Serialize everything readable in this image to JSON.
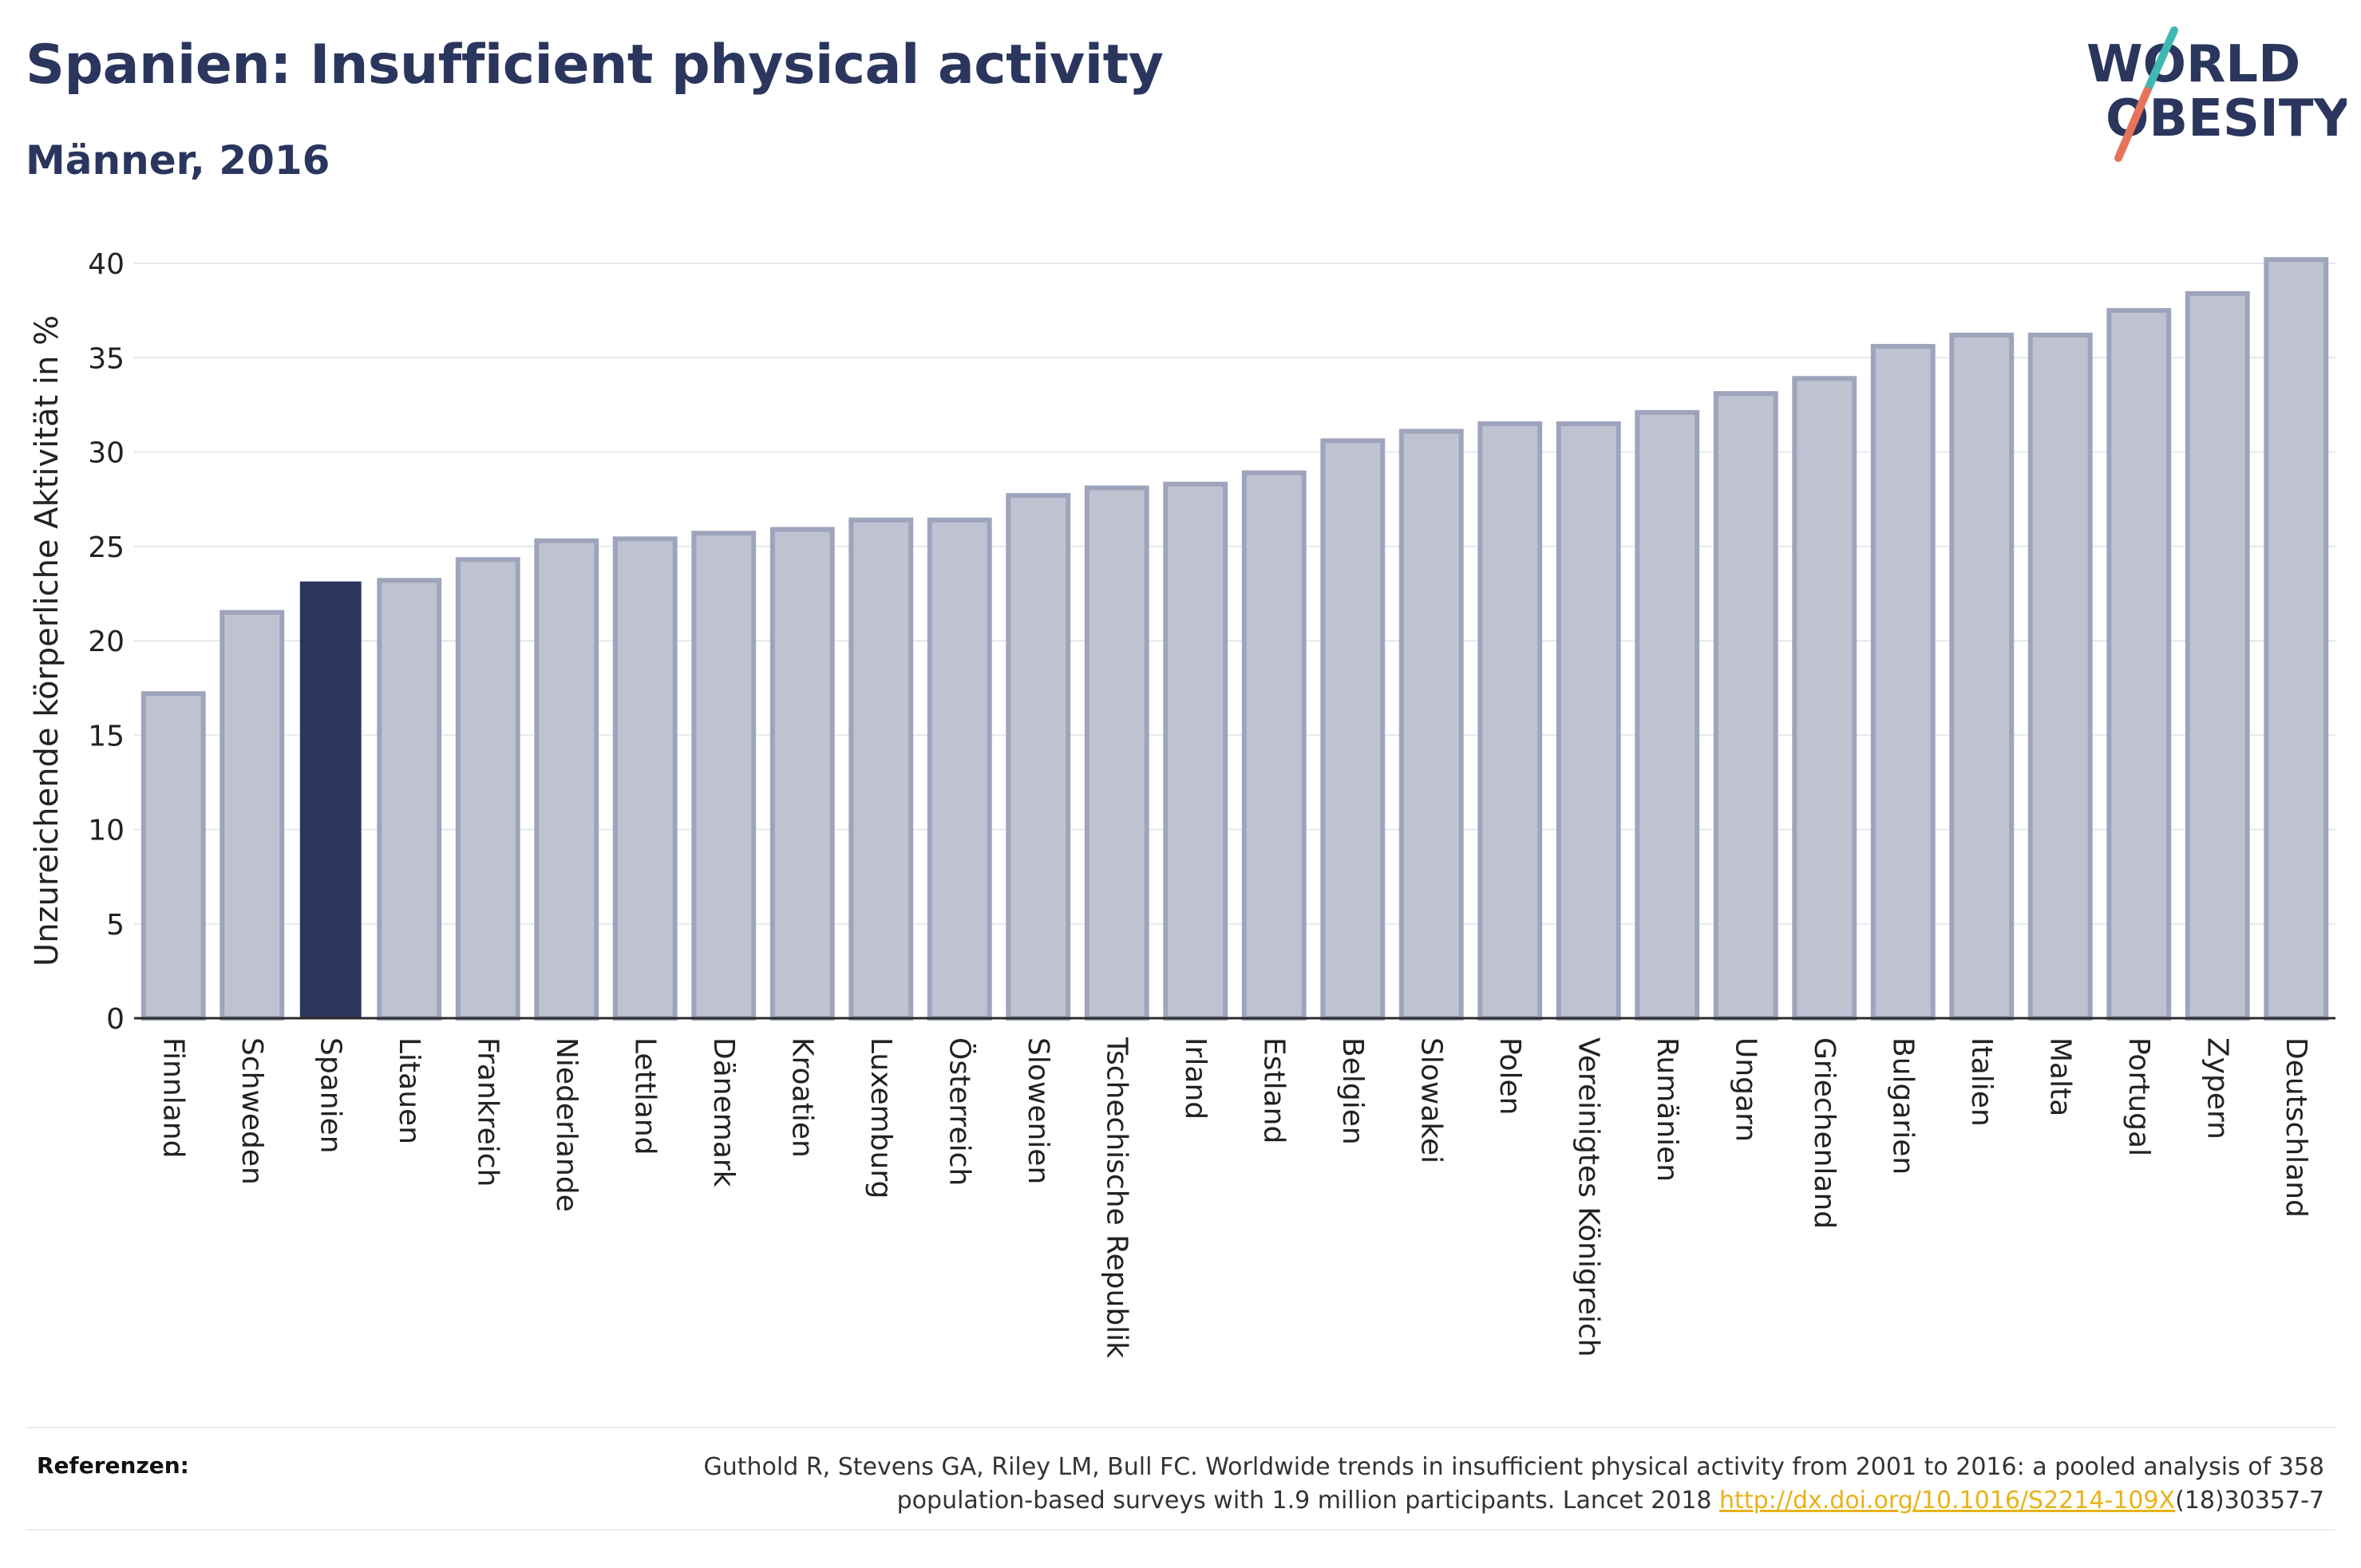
{
  "header": {
    "title": "Spanien: Insufficient physical activity",
    "subtitle": "Männer, 2016"
  },
  "logo": {
    "line1": "WORLD",
    "line2": "OBESITY",
    "colors": {
      "text": "#2b365e",
      "slash_top": "#3fb8b2",
      "slash_bottom": "#e8735a"
    }
  },
  "chart_data": {
    "type": "bar",
    "ylabel": "Unzureichende körperliche Aktivität in %",
    "xlabel": "",
    "ylim": [
      0,
      40
    ],
    "yticks": [
      0,
      5,
      10,
      15,
      20,
      25,
      30,
      35,
      40
    ],
    "grid": true,
    "highlight": "Spanien",
    "colors": {
      "bar": "#bfc3d1",
      "bar_border": "#9ea4bb",
      "highlight": "#2b365e"
    },
    "categories": [
      "Finnland",
      "Schweden",
      "Spanien",
      "Litauen",
      "Frankreich",
      "Niederlande",
      "Lettland",
      "Dänemark",
      "Kroatien",
      "Luxemburg",
      "Österreich",
      "Slowenien",
      "Tschechische Republik",
      "Irland",
      "Estland",
      "Belgien",
      "Slowakei",
      "Polen",
      "Vereinigtes Königreich",
      "Rumänien",
      "Ungarn",
      "Griechenland",
      "Bulgarien",
      "Italien",
      "Malta",
      "Portugal",
      "Zypern",
      "Deutschland"
    ],
    "values": [
      17.2,
      21.5,
      23.1,
      23.2,
      24.3,
      25.3,
      25.4,
      25.7,
      25.9,
      26.4,
      26.4,
      27.7,
      28.1,
      28.3,
      28.9,
      30.6,
      31.1,
      31.5,
      31.5,
      32.1,
      33.1,
      33.9,
      35.6,
      36.2,
      36.2,
      37.5,
      38.4,
      40.2
    ]
  },
  "references": {
    "label": "Referenzen:",
    "line1": "Guthold R, Stevens GA, Riley LM, Bull FC. Worldwide trends in insufficient physical activity from 2001 to 2016: a pooled analysis of 358",
    "line2_before": "population-based surveys with 1.9 million participants. Lancet 2018 ",
    "link": "http://dx.doi.org/10.1016/S2214-109X",
    "line2_after": "(18)30357-7"
  }
}
